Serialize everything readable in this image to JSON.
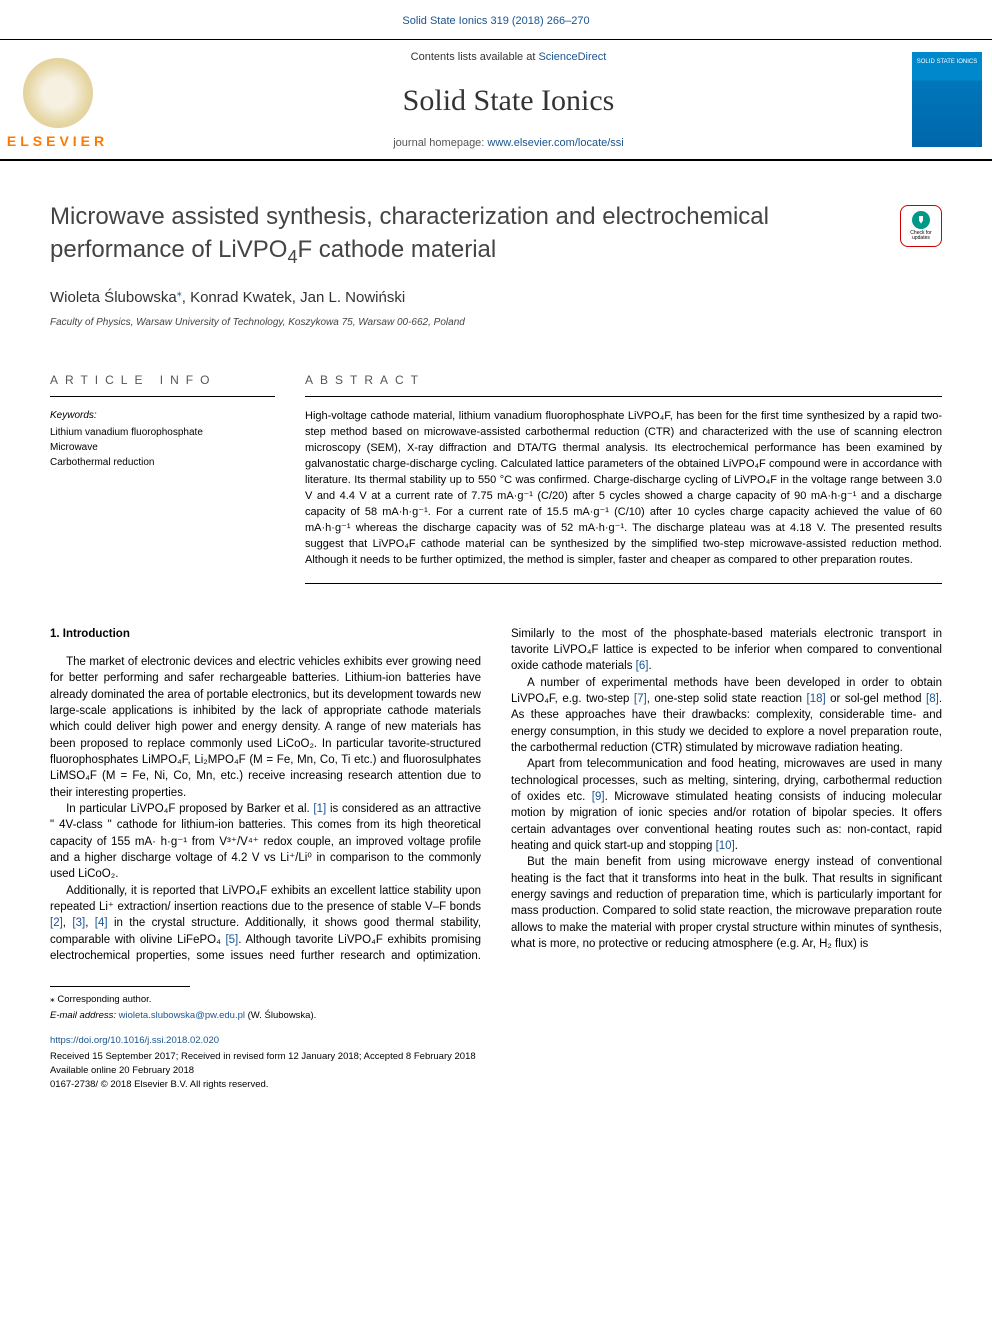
{
  "header": {
    "citation_link": "Solid State Ionics 319 (2018) 266–270",
    "contents_prefix": "Contents lists available at ",
    "contents_link": "ScienceDirect",
    "journal_name": "Solid State Ionics",
    "homepage_prefix": "journal homepage: ",
    "homepage_link": "www.elsevier.com/locate/ssi",
    "publisher_text": "ELSEVIER",
    "cover_label": "SOLID STATE IONICS"
  },
  "article": {
    "title_line1": "Microwave assisted synthesis, characterization and electrochemical",
    "title_line2": "performance of LiVPO",
    "title_sub": "4",
    "title_line2_tail": "F cathode material",
    "authors_html": "Wioleta Ślubowska",
    "author2": ", Konrad Kwatek, Jan L. Nowiński",
    "affiliation": "Faculty of Physics, Warsaw University of Technology, Koszykowa 75, Warsaw 00-662, Poland",
    "updates_text": "Check for updates"
  },
  "info": {
    "heading": "ARTICLE INFO",
    "keywords_label": "Keywords:",
    "keywords": [
      "Lithium vanadium fluorophosphate",
      "Microwave",
      "Carbothermal reduction"
    ]
  },
  "abstract": {
    "heading": "ABSTRACT",
    "text": "High-voltage cathode material, lithium vanadium fluorophosphate LiVPO₄F, has been for the first time synthesized by a rapid two-step method based on microwave-assisted carbothermal reduction (CTR) and characterized with the use of scanning electron microscopy (SEM), X-ray diffraction and DTA/TG thermal analysis. Its electrochemical performance has been examined by galvanostatic charge-discharge cycling. Calculated lattice parameters of the obtained LiVPO₄F compound were in accordance with literature. Its thermal stability up to 550 °C was confirmed. Charge-discharge cycling of LiVPO₄F in the voltage range between 3.0 V and 4.4 V at a current rate of 7.75 mA·g⁻¹ (C/20) after 5 cycles showed a charge capacity of 90 mA·h·g⁻¹ and a discharge capacity of 58 mA·h·g⁻¹. For a current rate of 15.5 mA·g⁻¹ (C/10) after 10 cycles charge capacity achieved the value of 60 mA·h·g⁻¹ whereas the discharge capacity was of 52 mA·h·g⁻¹. The discharge plateau was at 4.18 V. The presented results suggest that LiVPO₄F cathode material can be synthesized by the simplified two-step microwave-assisted reduction method. Although it needs to be further optimized, the method is simpler, faster and cheaper as compared to other preparation routes."
  },
  "body": {
    "section1_heading": "1. Introduction",
    "p1": "The market of electronic devices and electric vehicles exhibits ever growing need for better performing and safer rechargeable batteries. Lithium-ion batteries have already dominated the area of portable electronics, but its development towards new large-scale applications is inhibited by the lack of appropriate cathode materials which could deliver high power and energy density. A range of new materials has been proposed to replace commonly used LiCoO₂. In particular tavorite-structured fluorophosphates LiMPO₄F, Li₂MPO₄F (M = Fe, Mn, Co, Ti etc.) and fluorosulphates LiMSO₄F (M = Fe, Ni, Co, Mn, etc.) receive increasing research attention due to their interesting properties.",
    "p2a": "In particular LiVPO₄F proposed by Barker et al. ",
    "p2_cite1": "[1]",
    "p2b": " is considered as an attractive \" 4V-class \" cathode for lithium-ion batteries. This comes from its high theoretical capacity of 155 mA· h·g⁻¹ from V³⁺/V⁴⁺ redox couple, an improved voltage profile and a higher discharge voltage of 4.2 V vs Li⁺/Li⁰ in comparison to the commonly used LiCoO₂.",
    "p3a": "Additionally, it is reported that LiVPO₄F exhibits an excellent lattice stability upon repeated Li⁺ extraction/ insertion reactions due to the presence of stable V–F bonds ",
    "p3_cite2": "[2]",
    "p3_sep1": ", ",
    "p3_cite3": "[3]",
    "p3_sep2": ", ",
    "p3_cite4": "[4]",
    "p3b": " in the crystal structure. Additionally, it shows good thermal stability, comparable with olivine LiFePO₄ ",
    "p3_cite5": "[5]",
    "p3c": ". Although tavorite LiVPO₄F exhibits promising electrochemical properties, some issues need further research and optimization. Similarly to the most of the phosphate-based materials electronic transport in tavorite LiVPO₄F lattice is expected to be inferior when compared to conventional oxide cathode materials ",
    "p3_cite6": "[6]",
    "p3d": ".",
    "p4a": "A number of experimental methods have been developed in order to obtain LiVPO₄F, e.g. two-step ",
    "p4_cite7": "[7]",
    "p4b": ", one-step solid state reaction ",
    "p4_cite18": "[18]",
    "p4c": " or sol-gel method ",
    "p4_cite8": "[8]",
    "p4d": ". As these approaches have their drawbacks: complexity, considerable time- and energy consumption, in this study we decided to explore a novel preparation route, the carbothermal reduction (CTR) stimulated by microwave radiation heating.",
    "p5a": "Apart from telecommunication and food heating, microwaves are used in many technological processes, such as melting, sintering, drying, carbothermal reduction of oxides etc. ",
    "p5_cite9": "[9]",
    "p5b": ". Microwave stimulated heating consists of inducing molecular motion by migration of ionic species and/or rotation of bipolar species. It offers certain advantages over conventional heating routes such as: non-contact, rapid heating and quick start-up and stopping ",
    "p5_cite10": "[10]",
    "p5c": ".",
    "p6": "But the main benefit from using microwave energy instead of conventional heating is the fact that it transforms into heat in the bulk. That results in significant energy savings and reduction of preparation time, which is particularly important for mass production. Compared to solid state reaction, the microwave preparation route allows to make the material with proper crystal structure within minutes of synthesis, what is more, no protective or reducing atmosphere (e.g. Ar, H₂ flux) is"
  },
  "footer": {
    "corr_label": "⁎ Corresponding author.",
    "email_label": "E-mail address: ",
    "email": "wioleta.slubowska@pw.edu.pl",
    "email_tail": " (W. Ślubowska).",
    "doi": "https://doi.org/10.1016/j.ssi.2018.02.020",
    "received": "Received 15 September 2017; Received in revised form 12 January 2018; Accepted 8 February 2018",
    "available": "Available online 20 February 2018",
    "copyright": "0167-2738/ © 2018 Elsevier B.V. All rights reserved."
  },
  "colors": {
    "link": "#1a5490",
    "elsevier_orange": "#ff7800",
    "text": "#000000",
    "heading_gray": "#555555"
  }
}
